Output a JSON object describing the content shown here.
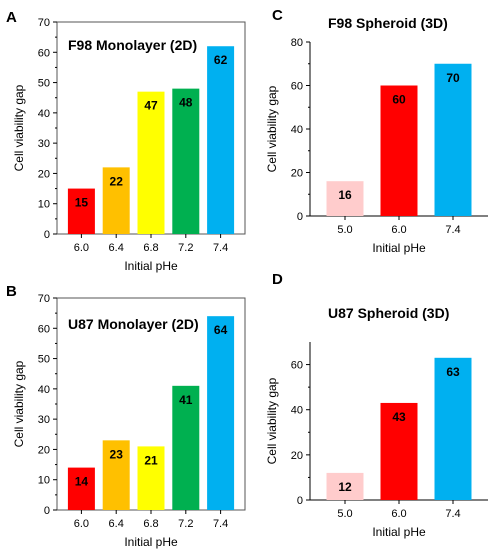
{
  "chart_data": [
    {
      "panel": "A",
      "type": "bar",
      "title": "F98 Monolayer (2D)",
      "xlabel": "Initial pHe",
      "ylabel": "Cell viability gap",
      "categories": [
        "6.0",
        "6.4",
        "6.8",
        "7.2",
        "7.4"
      ],
      "values": [
        15,
        22,
        47,
        48,
        62
      ],
      "data_labels": [
        "15",
        "22",
        "47",
        "48",
        "62"
      ],
      "colors": [
        "#ff0000",
        "#ffc000",
        "#ffff00",
        "#00b050",
        "#00b0f0"
      ],
      "ylim": [
        0,
        70
      ],
      "yticks": [
        0,
        10,
        20,
        30,
        40,
        50,
        60,
        70
      ],
      "ytick_labels": [
        "0",
        "10",
        "20",
        "30",
        "40",
        "50",
        "60",
        "70"
      ],
      "frame": "box"
    },
    {
      "panel": "C",
      "type": "bar",
      "title": "F98 Spheroid (3D)",
      "xlabel": "Initial pHe",
      "ylabel": "Cell viability gap",
      "categories": [
        "5.0",
        "6.0",
        "7.4"
      ],
      "values": [
        16,
        60,
        70
      ],
      "data_labels": [
        "16",
        "60",
        "70"
      ],
      "colors": [
        "#ffcccc",
        "#ff0000",
        "#00b0f0"
      ],
      "ylim": [
        0,
        80
      ],
      "yticks": [
        0,
        20,
        40,
        60,
        80
      ],
      "ytick_labels": [
        "0",
        "20",
        "40",
        "60",
        "80"
      ],
      "frame": "open"
    },
    {
      "panel": "B",
      "type": "bar",
      "title": "U87 Monolayer (2D)",
      "xlabel": "Initial pHe",
      "ylabel": "Cell viability gap",
      "categories": [
        "6.0",
        "6.4",
        "6.8",
        "7.2",
        "7.4"
      ],
      "values": [
        14,
        23,
        21,
        41,
        64
      ],
      "data_labels": [
        "14",
        "23",
        "21",
        "41",
        "64"
      ],
      "colors": [
        "#ff0000",
        "#ffc000",
        "#ffff00",
        "#00b050",
        "#00b0f0"
      ],
      "ylim": [
        0,
        70
      ],
      "yticks": [
        0,
        10,
        20,
        30,
        40,
        50,
        60,
        70
      ],
      "ytick_labels": [
        "0",
        "10",
        "20",
        "30",
        "40",
        "50",
        "60",
        "70"
      ],
      "frame": "box"
    },
    {
      "panel": "D",
      "type": "bar",
      "title": "U87 Spheroid (3D)",
      "xlabel": "Initial pHe",
      "ylabel": "Cell viability gap",
      "categories": [
        "5.0",
        "6.0",
        "7.4"
      ],
      "values": [
        12,
        43,
        63
      ],
      "data_labels": [
        "12",
        "43",
        "63"
      ],
      "colors": [
        "#ffcccc",
        "#ff0000",
        "#00b0f0"
      ],
      "ylim": [
        0,
        70
      ],
      "yticks": [
        0,
        20,
        40,
        60
      ],
      "ytick_labels": [
        "0",
        "20",
        "40",
        "60"
      ],
      "frame": "open"
    }
  ]
}
